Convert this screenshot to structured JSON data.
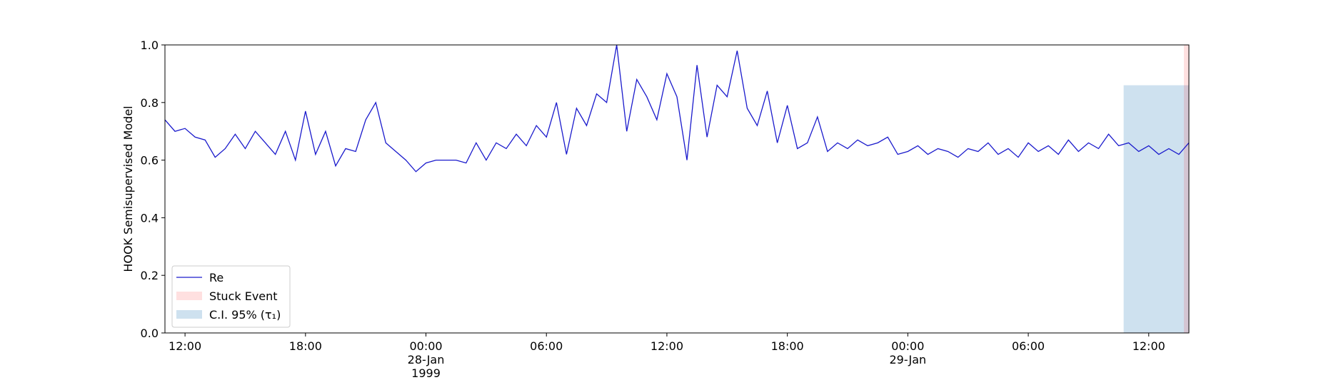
{
  "chart_data": {
    "type": "line",
    "y_label": "HOOK Semisupervised Model",
    "xlim": [
      "1999-01-27 11:00",
      "1999-01-29 14:00"
    ],
    "xticks": [
      {
        "value": "1999-01-27 12:00",
        "label": "12:00"
      },
      {
        "value": "1999-01-27 18:00",
        "label": "18:00"
      },
      {
        "value": "1999-01-28 00:00",
        "label": "00:00\n28-Jan\n1999"
      },
      {
        "value": "1999-01-28 06:00",
        "label": "06:00"
      },
      {
        "value": "1999-01-28 12:00",
        "label": "12:00"
      },
      {
        "value": "1999-01-28 18:00",
        "label": "18:00"
      },
      {
        "value": "1999-01-29 00:00",
        "label": "00:00\n29-Jan"
      },
      {
        "value": "1999-01-29 06:00",
        "label": "06:00"
      },
      {
        "value": "1999-01-29 12:00",
        "label": "12:00"
      }
    ],
    "ylim": [
      0,
      1
    ],
    "yticks": [
      {
        "value": 0,
        "label": "0.0"
      },
      0.2,
      0.4,
      0.6,
      0.8,
      {
        "value": 1,
        "label": "1.0"
      }
    ],
    "legend": "lower left",
    "x": [
      "1999-01-27 11:00",
      "1999-01-27 11:30",
      "1999-01-27 12:00",
      "1999-01-27 12:30",
      "1999-01-27 13:00",
      "1999-01-27 13:30",
      "1999-01-27 14:00",
      "1999-01-27 14:30",
      "1999-01-27 15:00",
      "1999-01-27 15:30",
      "1999-01-27 16:00",
      "1999-01-27 16:30",
      "1999-01-27 17:00",
      "1999-01-27 17:30",
      "1999-01-27 18:00",
      "1999-01-27 18:30",
      "1999-01-27 19:00",
      "1999-01-27 19:30",
      "1999-01-27 20:00",
      "1999-01-27 20:30",
      "1999-01-27 21:00",
      "1999-01-27 21:30",
      "1999-01-27 22:00",
      "1999-01-27 22:30",
      "1999-01-27 23:00",
      "1999-01-27 23:30",
      "1999-01-28 00:00",
      "1999-01-28 00:30",
      "1999-01-28 01:00",
      "1999-01-28 01:30",
      "1999-01-28 02:00",
      "1999-01-28 02:30",
      "1999-01-28 03:00",
      "1999-01-28 03:30",
      "1999-01-28 04:00",
      "1999-01-28 04:30",
      "1999-01-28 05:00",
      "1999-01-28 05:30",
      "1999-01-28 06:00",
      "1999-01-28 06:30",
      "1999-01-28 07:00",
      "1999-01-28 07:30",
      "1999-01-28 08:00",
      "1999-01-28 08:30",
      "1999-01-28 09:00",
      "1999-01-28 09:30",
      "1999-01-28 10:00",
      "1999-01-28 10:30",
      "1999-01-28 11:00",
      "1999-01-28 11:30",
      "1999-01-28 12:00",
      "1999-01-28 12:30",
      "1999-01-28 13:00",
      "1999-01-28 13:30",
      "1999-01-28 14:00",
      "1999-01-28 14:30",
      "1999-01-28 15:00",
      "1999-01-28 15:30",
      "1999-01-28 16:00",
      "1999-01-28 16:30",
      "1999-01-28 17:00",
      "1999-01-28 17:30",
      "1999-01-28 18:00",
      "1999-01-28 18:30",
      "1999-01-28 19:00",
      "1999-01-28 19:30",
      "1999-01-28 20:00",
      "1999-01-28 20:30",
      "1999-01-28 21:00",
      "1999-01-28 21:30",
      "1999-01-28 22:00",
      "1999-01-28 22:30",
      "1999-01-28 23:00",
      "1999-01-28 23:30",
      "1999-01-29 00:00",
      "1999-01-29 00:30",
      "1999-01-29 01:00",
      "1999-01-29 01:30",
      "1999-01-29 02:00",
      "1999-01-29 02:30",
      "1999-01-29 03:00",
      "1999-01-29 03:30",
      "1999-01-29 04:00",
      "1999-01-29 04:30",
      "1999-01-29 05:00",
      "1999-01-29 05:30",
      "1999-01-29 06:00",
      "1999-01-29 06:30",
      "1999-01-29 07:00",
      "1999-01-29 07:30",
      "1999-01-29 08:00",
      "1999-01-29 08:30",
      "1999-01-29 09:00",
      "1999-01-29 09:30",
      "1999-01-29 10:00",
      "1999-01-29 10:30",
      "1999-01-29 11:00",
      "1999-01-29 11:30",
      "1999-01-29 12:00",
      "1999-01-29 12:30",
      "1999-01-29 13:00",
      "1999-01-29 13:30",
      "1999-01-29 14:00"
    ],
    "series": [
      {
        "name": "Re",
        "color": "#1a1acc",
        "values": [
          0.74,
          0.7,
          0.71,
          0.68,
          0.67,
          0.61,
          0.64,
          0.69,
          0.64,
          0.7,
          0.66,
          0.62,
          0.7,
          0.6,
          0.77,
          0.62,
          0.7,
          0.58,
          0.64,
          0.63,
          0.74,
          0.8,
          0.66,
          0.63,
          0.6,
          0.56,
          0.59,
          0.6,
          0.6,
          0.6,
          0.59,
          0.66,
          0.6,
          0.66,
          0.64,
          0.69,
          0.65,
          0.72,
          0.68,
          0.8,
          0.62,
          0.78,
          0.72,
          0.83,
          0.8,
          1.0,
          0.7,
          0.88,
          0.82,
          0.74,
          0.9,
          0.82,
          0.6,
          0.93,
          0.68,
          0.86,
          0.82,
          0.98,
          0.78,
          0.72,
          0.84,
          0.66,
          0.79,
          0.64,
          0.66,
          0.75,
          0.63,
          0.66,
          0.64,
          0.67,
          0.65,
          0.66,
          0.68,
          0.62,
          0.63,
          0.65,
          0.62,
          0.64,
          0.63,
          0.61,
          0.64,
          0.63,
          0.66,
          0.62,
          0.64,
          0.61,
          0.66,
          0.63,
          0.65,
          0.62,
          0.67,
          0.63,
          0.66,
          0.64,
          0.69,
          0.65,
          0.66,
          0.63,
          0.65,
          0.62,
          0.64,
          0.62,
          0.66
        ]
      }
    ],
    "spans": [
      {
        "name": "Stuck Event",
        "start": "1999-01-29 13:45",
        "end": "1999-01-29 14:00",
        "color": "#ff0000",
        "opacity": 0.12
      },
      {
        "name": "C.I. 95% (τ₁)",
        "start": "1999-01-29 10:45",
        "end": "1999-01-29 14:00",
        "top": 0.86,
        "color": "#1f77b4",
        "opacity": 0.22
      }
    ]
  }
}
